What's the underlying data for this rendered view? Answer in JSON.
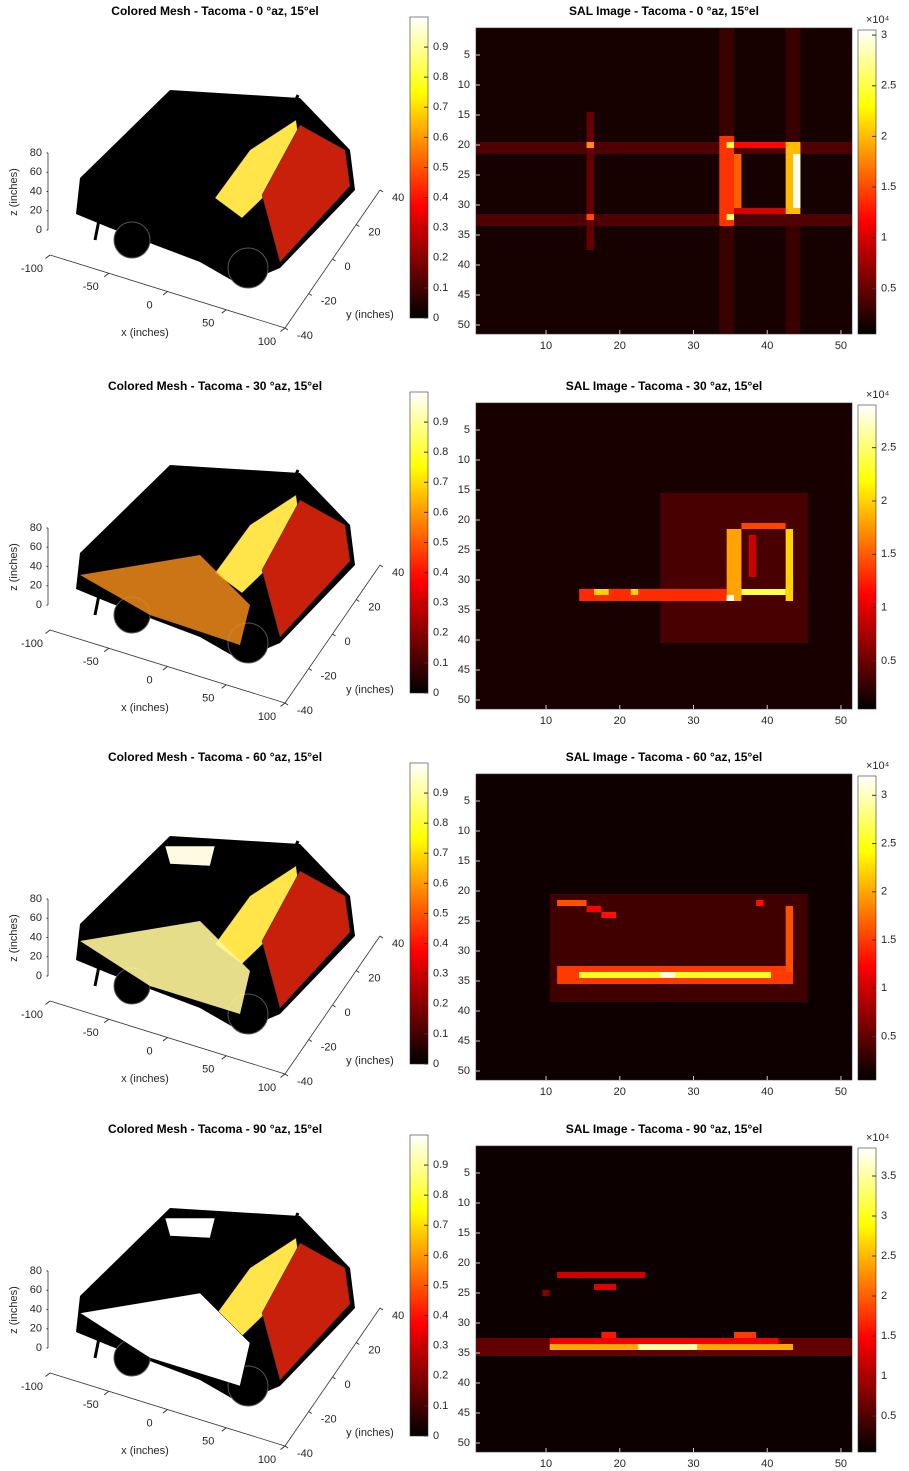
{
  "chart_data": [
    {
      "type": "mesh3d",
      "title": "Colored Mesh - Tacoma - 0 °az, 15°el",
      "xlabel": "x (inches)",
      "ylabel": "y (inches)",
      "zlabel": "z (inches)",
      "xlim": [
        -100,
        100
      ],
      "xticks": [
        -100,
        -50,
        0,
        50,
        100
      ],
      "ylim": [
        -40,
        40
      ],
      "yticks": [
        -40,
        -20,
        0,
        20,
        40
      ],
      "zlim": [
        0,
        80
      ],
      "zticks": [
        0,
        20,
        40,
        60,
        80
      ],
      "clim": [
        0,
        1
      ],
      "cticks": [
        0,
        0.1,
        0.2,
        0.3,
        0.4,
        0.5,
        0.6,
        0.7,
        0.8,
        0.9
      ],
      "colormap": "hot"
    },
    {
      "type": "heatmap",
      "title": "SAL Image - Tacoma - 0 °az, 15°el",
      "colorbar_label": "×10⁴",
      "colormap": "hot",
      "xlim": [
        0.5,
        51.5
      ],
      "xticks": [
        10,
        20,
        30,
        40,
        50
      ],
      "ylim": [
        51.5,
        0.5
      ],
      "yticks": [
        5,
        10,
        15,
        20,
        25,
        30,
        35,
        40,
        45,
        50
      ],
      "clim": [
        0.05,
        3.05
      ],
      "cticks": [
        0.5,
        1,
        1.5,
        2,
        2.5,
        3
      ],
      "background": 0.15,
      "rects": [
        [
          33.5,
          35.5,
          0.5,
          51.5,
          0.3
        ],
        [
          42.5,
          44.5,
          0.5,
          51.5,
          0.3
        ],
        [
          0.5,
          51.5,
          19.5,
          21.5,
          0.4
        ],
        [
          0.5,
          51.5,
          31.5,
          33.5,
          0.4
        ],
        [
          15.5,
          16.5,
          14.5,
          37.5,
          0.5
        ],
        [
          15.5,
          16.5,
          19.5,
          20.5,
          1.8
        ],
        [
          15.5,
          16.5,
          31.5,
          32.5,
          1.5
        ],
        [
          33.5,
          35.5,
          18.5,
          33.5,
          1.4
        ],
        [
          34.5,
          35.5,
          19.5,
          20.5,
          2.5
        ],
        [
          34.5,
          35.5,
          31.5,
          32.5,
          2.6
        ],
        [
          35.5,
          42.5,
          19.5,
          20.5,
          1.2
        ],
        [
          35.5,
          42.5,
          30.5,
          31.5,
          1.0
        ],
        [
          35.5,
          36.5,
          21.5,
          30.5,
          1.6
        ],
        [
          42.5,
          44.5,
          19.5,
          31.5,
          2.0
        ],
        [
          43.5,
          44.5,
          21.5,
          30.5,
          3.0
        ]
      ]
    },
    {
      "type": "mesh3d",
      "title": "Colored Mesh - Tacoma - 30 °az, 15°el",
      "xlabel": "x (inches)",
      "ylabel": "y (inches)",
      "zlabel": "z (inches)",
      "xlim": [
        -100,
        100
      ],
      "xticks": [
        -100,
        -50,
        0,
        50,
        100
      ],
      "ylim": [
        -40,
        40
      ],
      "yticks": [
        -40,
        -20,
        0,
        20,
        40
      ],
      "zlim": [
        0,
        80
      ],
      "zticks": [
        0,
        20,
        40,
        60,
        80
      ],
      "clim": [
        0,
        1
      ],
      "cticks": [
        0,
        0.1,
        0.2,
        0.3,
        0.4,
        0.5,
        0.6,
        0.7,
        0.8,
        0.9
      ],
      "colormap": "hot"
    },
    {
      "type": "heatmap",
      "title": "SAL Image - Tacoma - 30 °az, 15°el",
      "colorbar_label": "×10⁴",
      "colormap": "hot",
      "xlim": [
        0.5,
        51.5
      ],
      "xticks": [
        10,
        20,
        30,
        40,
        50
      ],
      "ylim": [
        51.5,
        0.5
      ],
      "yticks": [
        5,
        10,
        15,
        20,
        25,
        30,
        35,
        40,
        45,
        50
      ],
      "clim": [
        0.05,
        2.9
      ],
      "cticks": [
        0.5,
        1,
        1.5,
        2,
        2.5
      ],
      "background": 0.15,
      "rects": [
        [
          25.5,
          45.5,
          15.5,
          40.5,
          0.35
        ],
        [
          14.5,
          34.5,
          31.5,
          33.5,
          1.3
        ],
        [
          16.5,
          18.5,
          31.5,
          32.5,
          2.0
        ],
        [
          21.5,
          22.5,
          31.5,
          32.5,
          2.0
        ],
        [
          34.5,
          36.5,
          21.5,
          33.5,
          1.8
        ],
        [
          36.5,
          42.5,
          20.5,
          21.5,
          1.4
        ],
        [
          42.5,
          43.5,
          21.5,
          33.5,
          2.0
        ],
        [
          36.5,
          42.5,
          31.5,
          32.5,
          2.4
        ],
        [
          34.5,
          35.5,
          32.5,
          33.5,
          2.8
        ],
        [
          37.5,
          38.5,
          22.5,
          29.5,
          0.9
        ]
      ]
    },
    {
      "type": "mesh3d",
      "title": "Colored Mesh - Tacoma - 60 °az, 15°el",
      "xlabel": "x (inches)",
      "ylabel": "y (inches)",
      "zlabel": "z (inches)",
      "xlim": [
        -100,
        100
      ],
      "xticks": [
        -100,
        -50,
        0,
        50,
        100
      ],
      "ylim": [
        -40,
        40
      ],
      "yticks": [
        -40,
        -20,
        0,
        20,
        40
      ],
      "zlim": [
        0,
        80
      ],
      "zticks": [
        0,
        20,
        40,
        60,
        80
      ],
      "clim": [
        0,
        1
      ],
      "cticks": [
        0,
        0.1,
        0.2,
        0.3,
        0.4,
        0.5,
        0.6,
        0.7,
        0.8,
        0.9
      ],
      "colormap": "hot"
    },
    {
      "type": "heatmap",
      "title": "SAL Image - Tacoma - 60 °az, 15°el",
      "colorbar_label": "×10⁴",
      "colormap": "hot",
      "xlim": [
        0.5,
        51.5
      ],
      "xticks": [
        10,
        20,
        30,
        40,
        50
      ],
      "ylim": [
        51.5,
        0.5
      ],
      "yticks": [
        5,
        10,
        15,
        20,
        25,
        30,
        35,
        40,
        45,
        50
      ],
      "clim": [
        0.05,
        3.2
      ],
      "cticks": [
        0.5,
        1,
        1.5,
        2,
        2.5,
        3
      ],
      "background": 0.12,
      "rects": [
        [
          10.5,
          45.5,
          20.5,
          38.5,
          0.35
        ],
        [
          11.5,
          43.5,
          32.5,
          35.5,
          1.5
        ],
        [
          14.5,
          40.5,
          33.5,
          34.5,
          2.5
        ],
        [
          25.5,
          27.5,
          33.5,
          34.5,
          3.1
        ],
        [
          11.5,
          15.5,
          21.5,
          22.5,
          1.6
        ],
        [
          15.5,
          17.5,
          22.5,
          23.5,
          1.2
        ],
        [
          17.5,
          19.5,
          23.5,
          24.5,
          1.3
        ],
        [
          38.5,
          39.5,
          21.5,
          22.5,
          1.3
        ],
        [
          42.5,
          43.5,
          22.5,
          33.5,
          1.6
        ]
      ]
    },
    {
      "type": "mesh3d",
      "title": "Colored Mesh - Tacoma - 90 °az, 15°el",
      "xlabel": "x (inches)",
      "ylabel": "y (inches)",
      "zlabel": "z (inches)",
      "xlim": [
        -100,
        100
      ],
      "xticks": [
        -100,
        -50,
        0,
        50,
        100
      ],
      "ylim": [
        -40,
        40
      ],
      "yticks": [
        -40,
        -20,
        0,
        20,
        40
      ],
      "zlim": [
        0,
        80
      ],
      "zticks": [
        0,
        20,
        40,
        60,
        80
      ],
      "clim": [
        0,
        1
      ],
      "cticks": [
        0,
        0.1,
        0.2,
        0.3,
        0.4,
        0.5,
        0.6,
        0.7,
        0.8,
        0.9
      ],
      "colormap": "hot"
    },
    {
      "type": "heatmap",
      "title": "SAL Image - Tacoma - 90 °az, 15°el",
      "colorbar_label": "×10⁴",
      "colormap": "hot",
      "xlim": [
        0.5,
        51.5
      ],
      "xticks": [
        10,
        20,
        30,
        40,
        50
      ],
      "ylim": [
        51.5,
        0.5
      ],
      "yticks": [
        5,
        10,
        15,
        20,
        25,
        30,
        35,
        40,
        45,
        50
      ],
      "clim": [
        0.05,
        3.85
      ],
      "cticks": [
        0.5,
        1,
        1.5,
        2,
        2.5,
        3,
        3.5
      ],
      "background": 0.12,
      "rects": [
        [
          0.5,
          51.5,
          32.5,
          35.5,
          0.6
        ],
        [
          10.5,
          41.5,
          32.5,
          33.5,
          1.4
        ],
        [
          10.5,
          43.5,
          33.5,
          34.5,
          2.4
        ],
        [
          17.5,
          19.5,
          31.5,
          32.5,
          1.6
        ],
        [
          35.5,
          38.5,
          31.5,
          32.5,
          1.8
        ],
        [
          22.5,
          30.5,
          33.5,
          34.5,
          3.5
        ],
        [
          11.5,
          23.5,
          21.5,
          22.5,
          1.2
        ],
        [
          16.5,
          19.5,
          23.5,
          24.5,
          1.3
        ],
        [
          9.5,
          10.5,
          24.5,
          25.5,
          0.8
        ]
      ]
    }
  ]
}
